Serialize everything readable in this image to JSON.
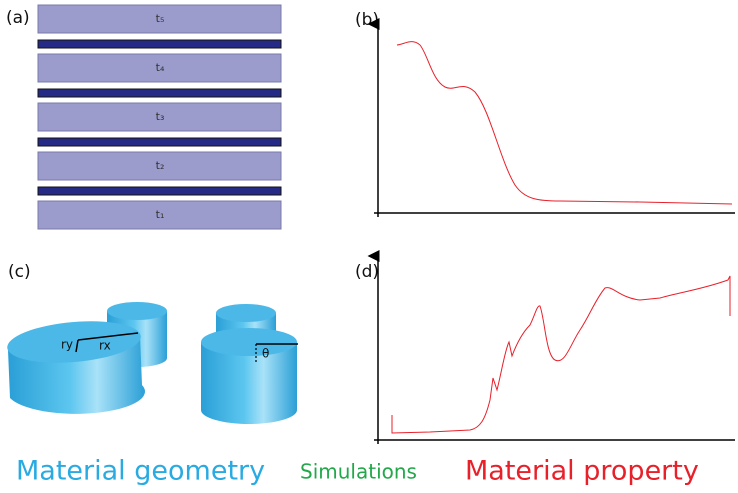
{
  "panels": {
    "a": "(a)",
    "b": "(b)",
    "c": "(c)",
    "d": "(d)"
  },
  "layers": [
    "t₅",
    "t₄",
    "t₃",
    "t₂",
    "t₁"
  ],
  "geometry_labels": {
    "ry": "ry",
    "rx": "rx",
    "theta": "θ"
  },
  "captions": {
    "geometry": "Material geometry",
    "simulations": "Simulations",
    "property": "Material property"
  }
}
